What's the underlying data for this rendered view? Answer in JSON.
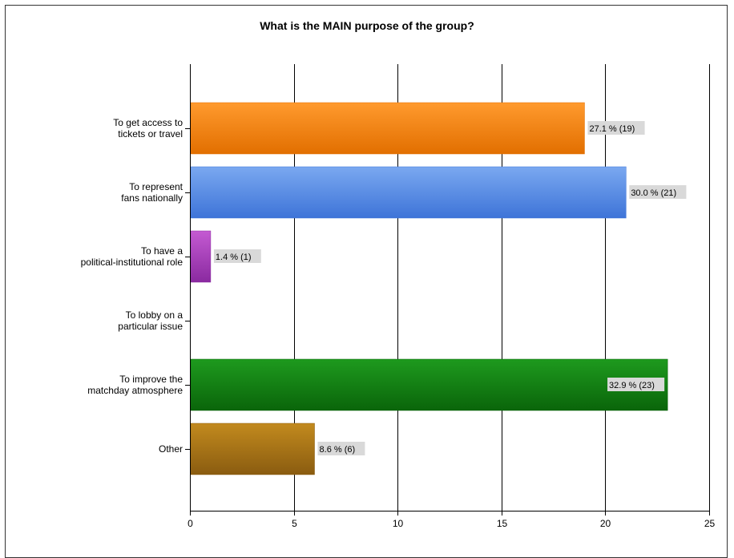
{
  "chart_data": {
    "type": "bar",
    "orientation": "horizontal",
    "title": "What is the MAIN purpose of the group?",
    "xlabel": "",
    "ylabel": "",
    "xlim": [
      0,
      25
    ],
    "x_ticks": [
      "0",
      "5",
      "10",
      "15",
      "20",
      "25"
    ],
    "grid": "vertical",
    "categories": [
      [
        "To get access to",
        "tickets or travel"
      ],
      [
        "To represent",
        "fans nationally"
      ],
      [
        "To have a",
        "political-institutional role"
      ],
      [
        "To lobby on a",
        "particular issue"
      ],
      [
        "To improve the",
        "matchday atmosphere"
      ],
      [
        "Other"
      ]
    ],
    "values": [
      19,
      21,
      1,
      0,
      23,
      6
    ],
    "data_labels": [
      "27.1 % (19)",
      "30.0 % (21)",
      "1.4 % (1)",
      "",
      "32.9 % (23)",
      "8.6 % (6)"
    ],
    "label_inside": [
      false,
      false,
      false,
      false,
      true,
      false
    ],
    "colors": [
      [
        "#ff9a2e",
        "#e26f00"
      ],
      [
        "#7aa8f0",
        "#3e74d8"
      ],
      [
        "#c45ad2",
        "#8a2aa0"
      ],
      [
        "#999999",
        "#777777"
      ],
      [
        "#1e9a1e",
        "#0a650a"
      ],
      [
        "#c28a1e",
        "#8a5c10"
      ]
    ]
  }
}
